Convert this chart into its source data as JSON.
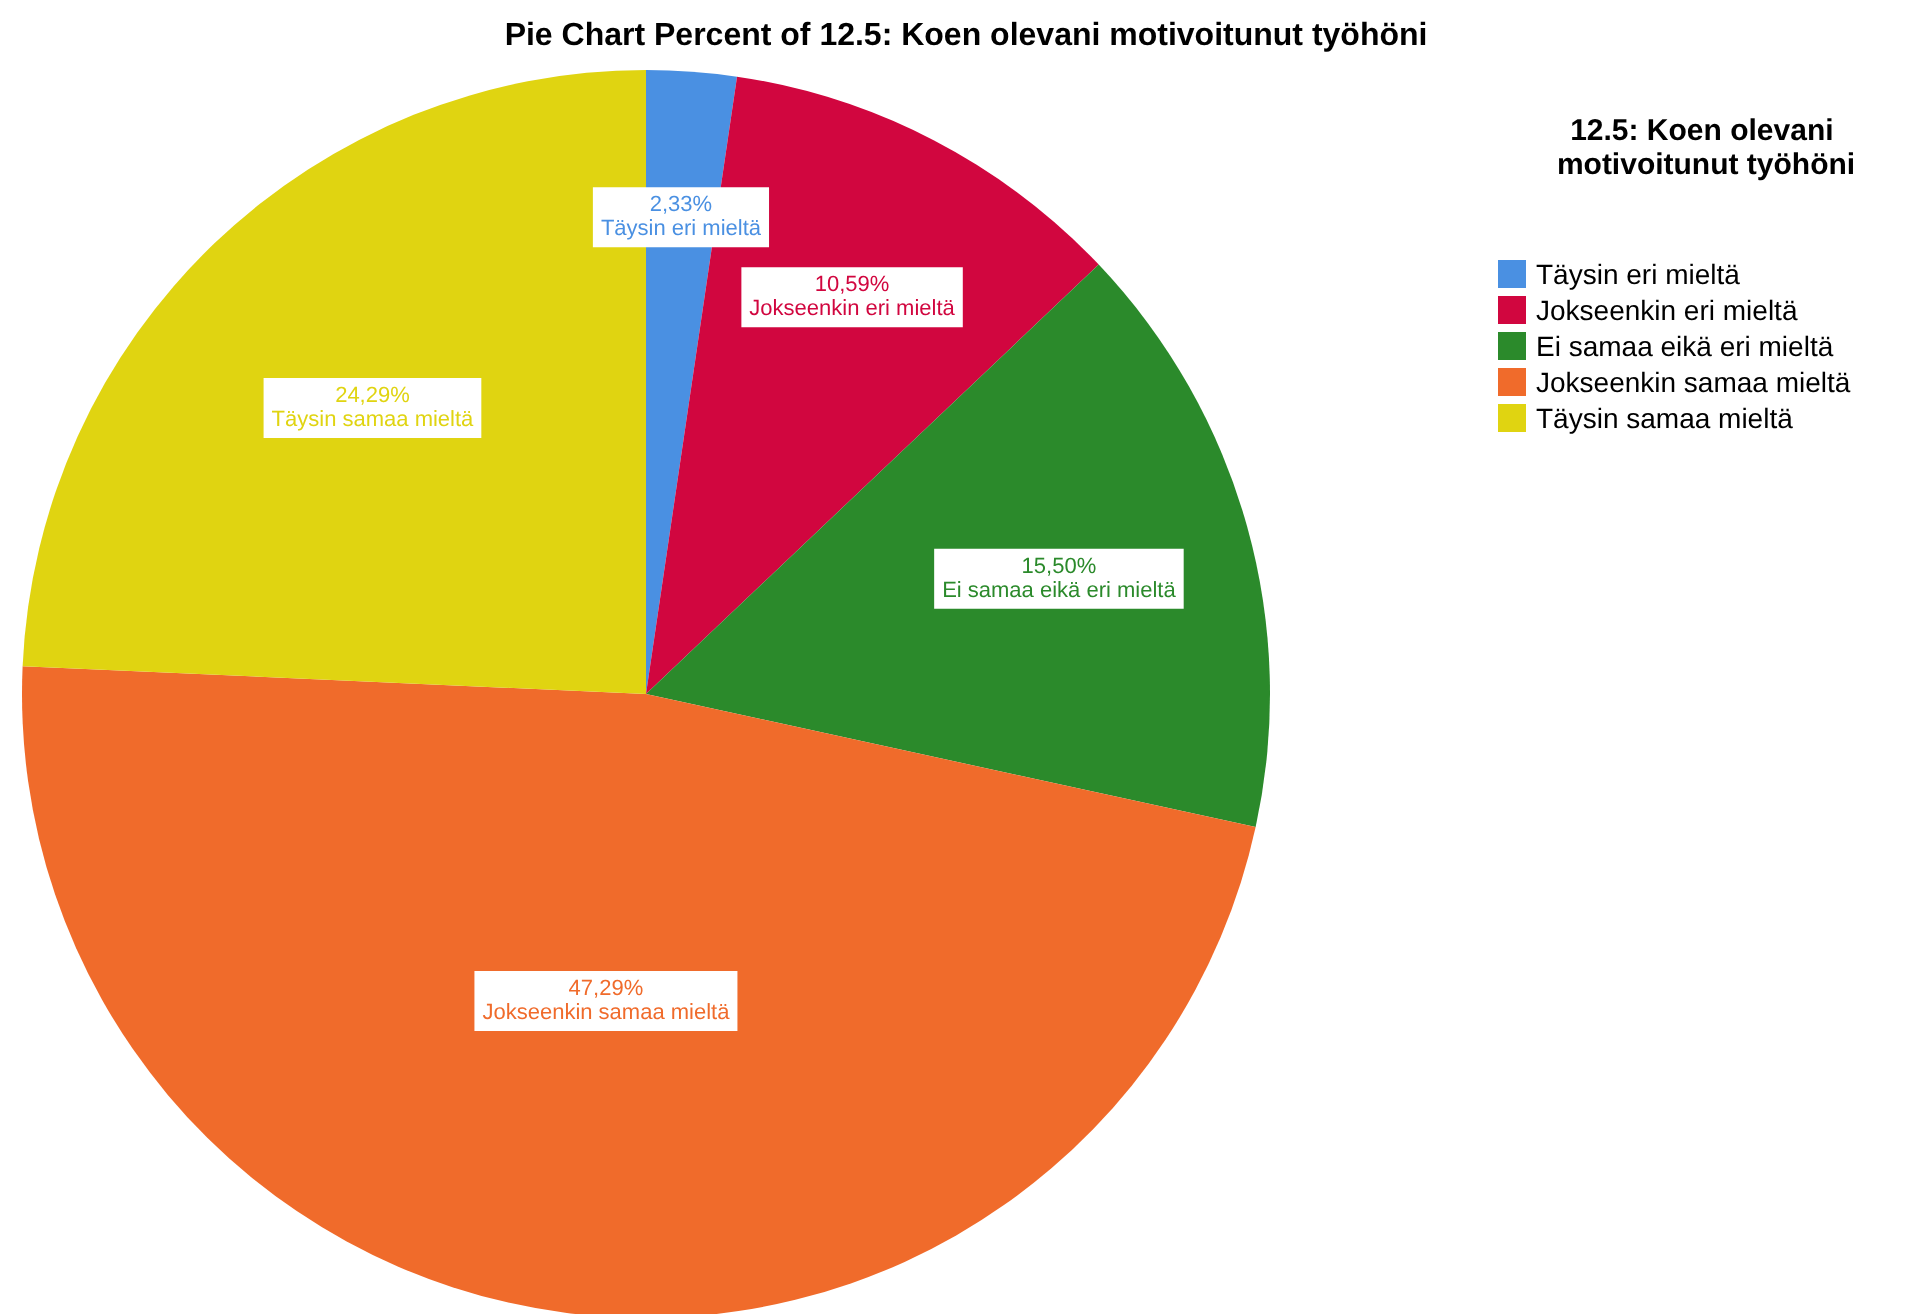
{
  "chart_data": {
    "type": "pie",
    "title": "Pie Chart Percent of 12.5: Koen olevani motivoitunut työhöni",
    "legend_title": "12.5: Koen olevani motivoitunut työhöni",
    "categories": [
      "Täysin eri mieltä",
      "Jokseenkin eri mieltä",
      "Ei samaa eikä eri mieltä",
      "Jokseenkin samaa mieltä",
      "Täysin samaa mieltä"
    ],
    "values": [
      2.33,
      10.59,
      15.5,
      47.29,
      24.29
    ],
    "value_labels": [
      "2,33%",
      "10,59%",
      "15,50%",
      "47,29%",
      "24,29%"
    ],
    "colors": [
      "#4a90e2",
      "#d1063f",
      "#2b8a2b",
      "#f06b2b",
      "#e0d411"
    ],
    "legend": "top right"
  }
}
